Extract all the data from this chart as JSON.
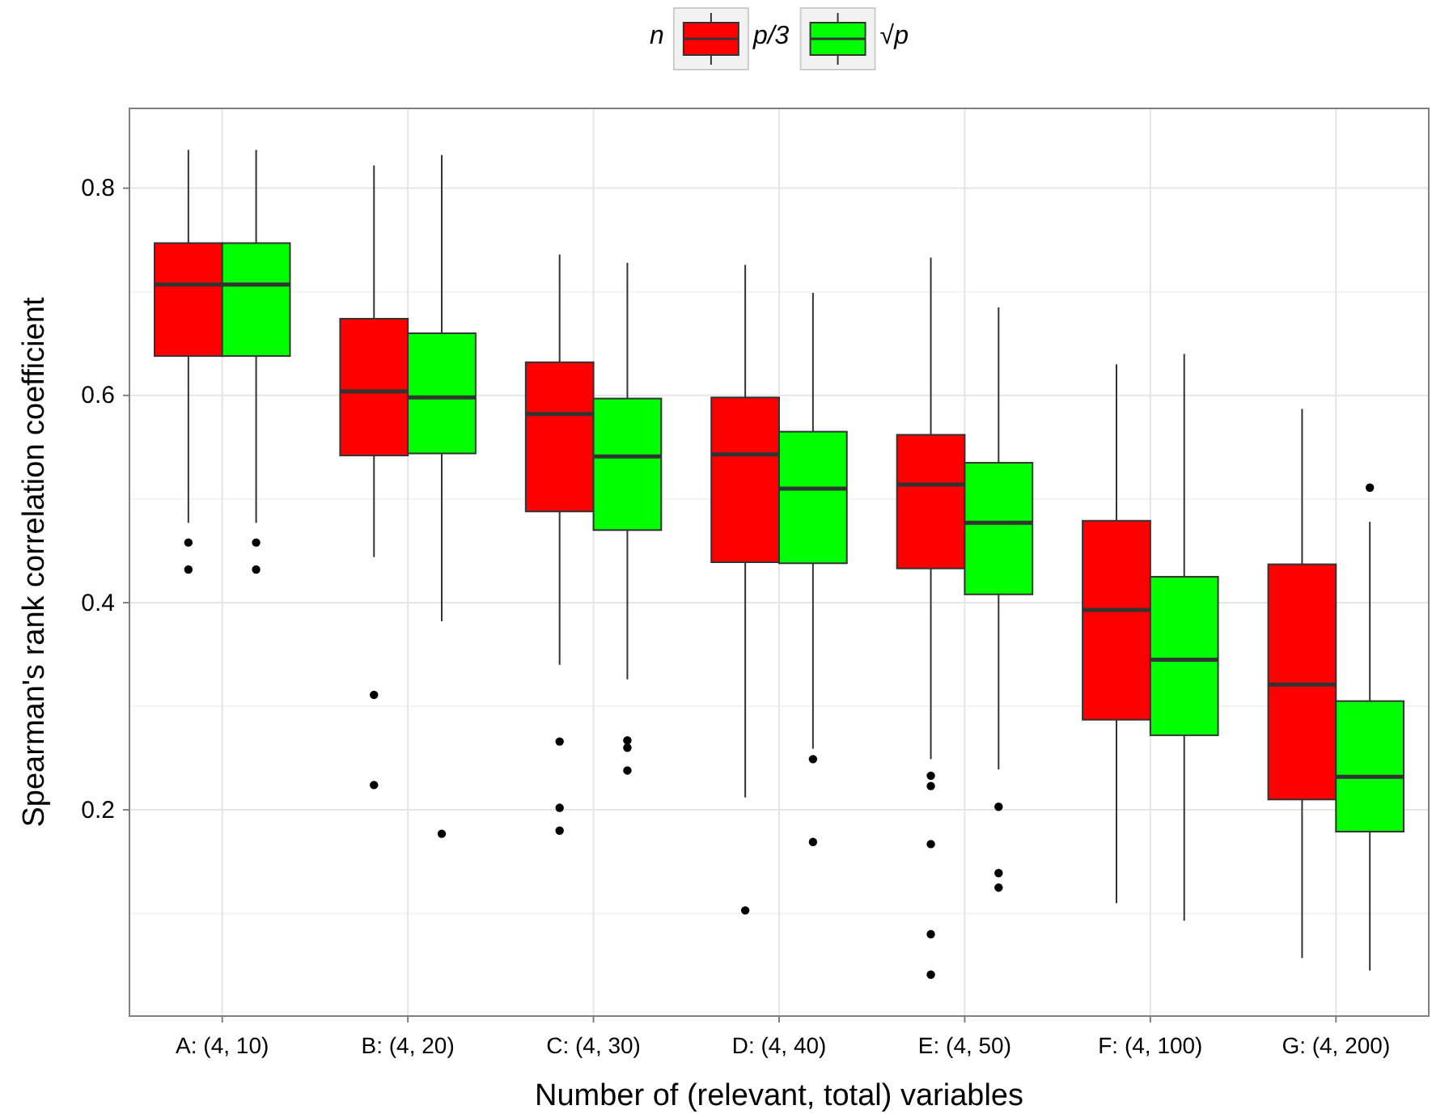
{
  "chart_data": {
    "type": "box",
    "xlabel": "Number of (relevant, total) variables",
    "ylabel": "Spearman's rank correlation coefficient",
    "legend_title": "n",
    "legend": "top",
    "grid": true,
    "categories": [
      "A: (4, 10)",
      "B: (4, 20)",
      "C: (4, 30)",
      "D: (4, 40)",
      "E: (4, 50)",
      "F: (4, 100)",
      "G: (4, 200)"
    ],
    "ylim": [
      0.001,
      0.877
    ],
    "yticks": [
      {
        "value": 0.1,
        "label": null
      },
      0.2,
      {
        "value": 0.3,
        "label": null
      },
      0.4,
      {
        "value": 0.5,
        "label": null
      },
      0.6,
      {
        "value": 0.7,
        "label": null
      },
      0.8
    ],
    "series": [
      {
        "name": "p/3",
        "color": "#ff0000",
        "boxes": [
          {
            "low": 0.477,
            "q1": 0.638,
            "median": 0.707,
            "q3": 0.747,
            "high": 0.837,
            "outliers": [
              0.458,
              0.432
            ]
          },
          {
            "low": 0.444,
            "q1": 0.542,
            "median": 0.604,
            "q3": 0.674,
            "high": 0.822,
            "outliers": [
              0.311,
              0.224
            ]
          },
          {
            "low": 0.34,
            "q1": 0.488,
            "median": 0.582,
            "q3": 0.632,
            "high": 0.736,
            "outliers": [
              0.266,
              0.202,
              0.18
            ]
          },
          {
            "low": 0.212,
            "q1": 0.439,
            "median": 0.543,
            "q3": 0.598,
            "high": 0.726,
            "outliers": [
              0.103
            ]
          },
          {
            "low": 0.249,
            "q1": 0.433,
            "median": 0.514,
            "q3": 0.562,
            "high": 0.733,
            "outliers": [
              0.233,
              0.223,
              0.167,
              0.08,
              0.041
            ]
          },
          {
            "low": 0.11,
            "q1": 0.287,
            "median": 0.393,
            "q3": 0.479,
            "high": 0.63
          },
          {
            "low": 0.057,
            "q1": 0.21,
            "median": 0.321,
            "q3": 0.437,
            "high": 0.587
          }
        ]
      },
      {
        "name": "√p",
        "color": "#00ff00",
        "boxes": [
          {
            "low": 0.477,
            "q1": 0.638,
            "median": 0.707,
            "q3": 0.747,
            "high": 0.837,
            "outliers": [
              0.458,
              0.432
            ]
          },
          {
            "low": 0.382,
            "q1": 0.544,
            "median": 0.598,
            "q3": 0.66,
            "high": 0.832,
            "outliers": [
              0.177
            ]
          },
          {
            "low": 0.326,
            "q1": 0.47,
            "median": 0.541,
            "q3": 0.597,
            "high": 0.728,
            "outliers": [
              0.267,
              0.26,
              0.238
            ]
          },
          {
            "low": 0.259,
            "q1": 0.438,
            "median": 0.51,
            "q3": 0.565,
            "high": 0.699,
            "outliers": [
              0.249,
              0.169
            ]
          },
          {
            "low": 0.239,
            "q1": 0.408,
            "median": 0.477,
            "q3": 0.535,
            "high": 0.685,
            "outliers": [
              0.203,
              0.139,
              0.125
            ]
          },
          {
            "low": 0.093,
            "q1": 0.272,
            "median": 0.345,
            "q3": 0.425,
            "high": 0.64
          },
          {
            "low": 0.045,
            "q1": 0.179,
            "median": 0.232,
            "q3": 0.305,
            "high": 0.478,
            "outliers": [
              0.511
            ]
          }
        ]
      }
    ]
  }
}
